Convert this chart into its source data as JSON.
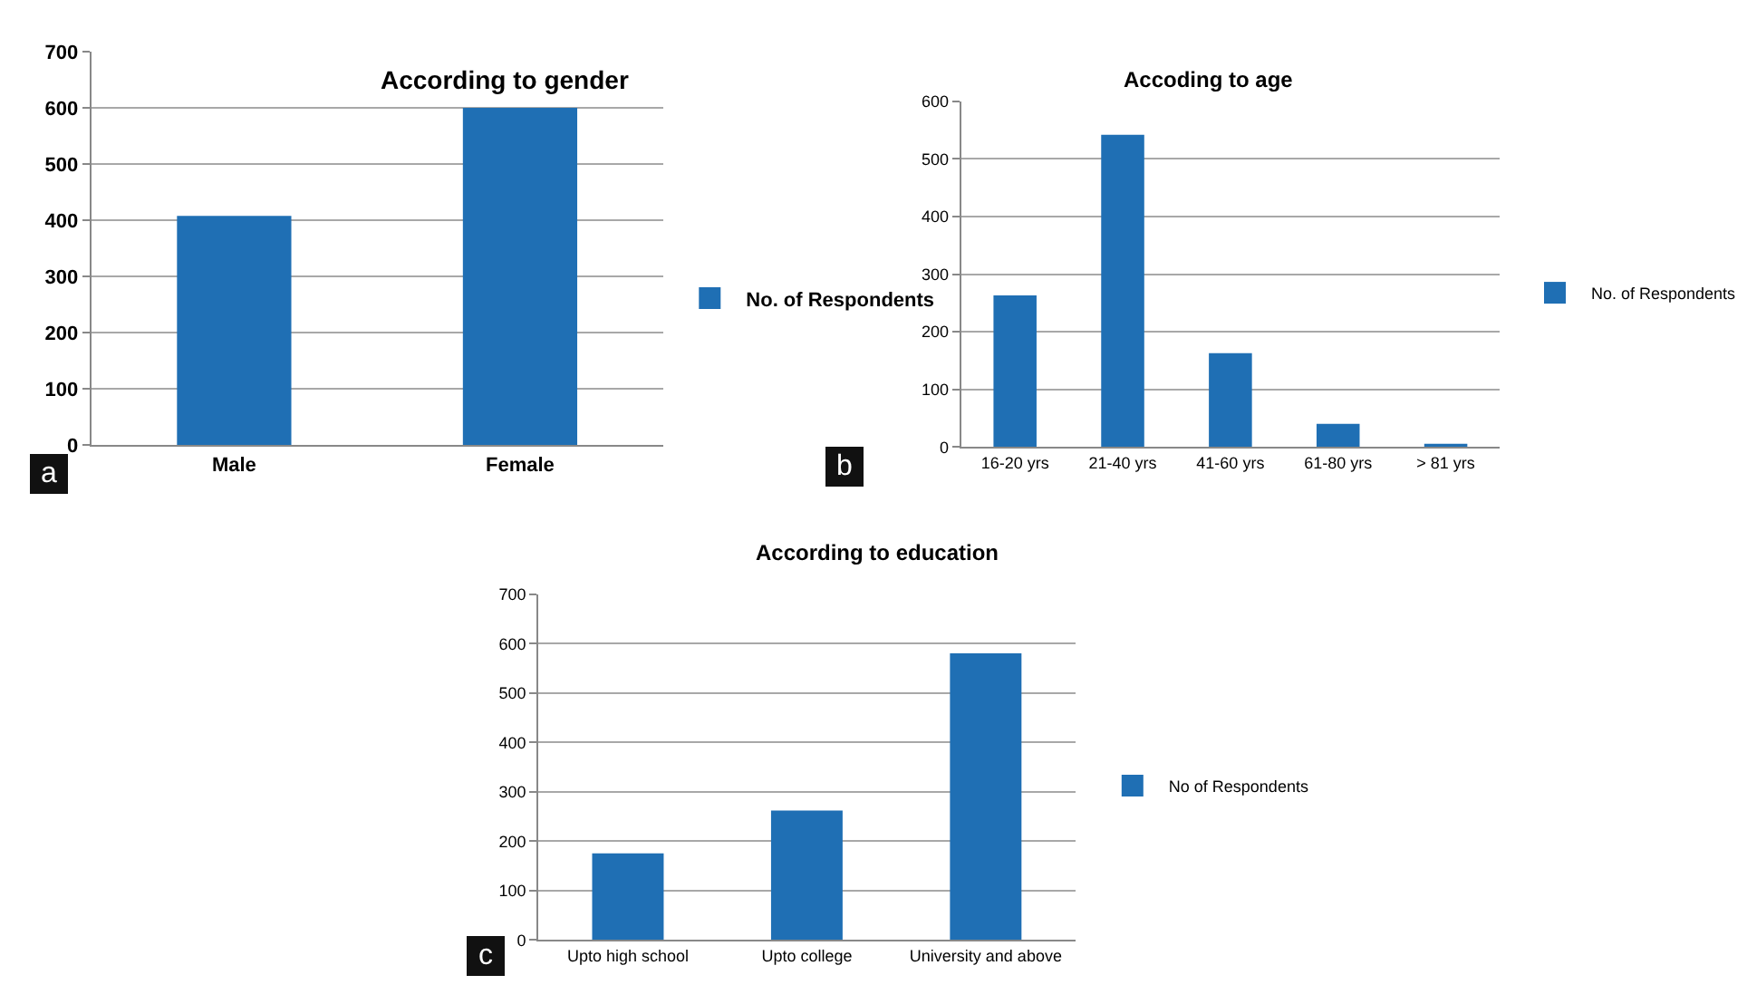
{
  "chart_data": [
    {
      "type": "bar",
      "title": "According to gender",
      "categories": [
        "Male",
        "Female"
      ],
      "series": [
        {
          "name": "No. of Respondents",
          "color": "#1f6fb4",
          "values": [
            408,
            600
          ]
        }
      ],
      "ylim": [
        0,
        700
      ],
      "yticks": [
        0,
        100,
        200,
        300,
        400,
        500,
        600,
        700
      ],
      "grid": "y",
      "legend": "right",
      "annotations": [
        "a"
      ]
    },
    {
      "type": "bar",
      "title": "Accoding to age",
      "categories": [
        "16-20 yrs",
        "21-40 yrs",
        "41-60 yrs",
        "61-80 yrs",
        "> 81 yrs"
      ],
      "series": [
        {
          "name": "No. of Respondents",
          "color": "#1f6fb4",
          "values": [
            263,
            542,
            163,
            40,
            5
          ]
        }
      ],
      "ylim": [
        0,
        600
      ],
      "yticks": [
        0,
        100,
        200,
        300,
        400,
        500,
        600
      ],
      "grid": "y",
      "legend": "right",
      "annotations": [
        "b"
      ]
    },
    {
      "type": "bar",
      "title": "According to education",
      "categories": [
        "Upto high school",
        "Upto college",
        "University and above"
      ],
      "series": [
        {
          "name": "No of Respondents",
          "color": "#1f6fb4",
          "values": [
            175,
            262,
            580
          ]
        }
      ],
      "ylim": [
        0,
        700
      ],
      "yticks": [
        0,
        100,
        200,
        300,
        400,
        500,
        600,
        700
      ],
      "grid": "y",
      "legend": "right",
      "annotations": [
        "c"
      ]
    }
  ]
}
